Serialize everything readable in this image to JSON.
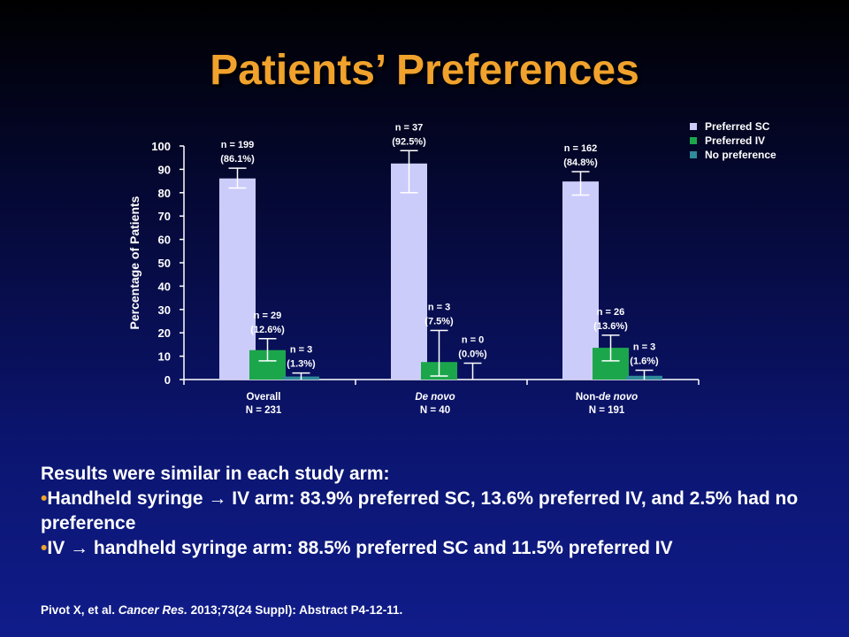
{
  "slide": {
    "title": "Patients’ Preferences",
    "summary_heading": "Results were similar in each study arm:",
    "bullet_marker": "•",
    "bullets": [
      "Handheld syringe → IV arm: 83.9% preferred SC, 13.6% preferred IV, and 2.5% had no preference",
      "IV → handheld syringe arm: 88.5% preferred SC and 11.5% preferred IV"
    ],
    "citation": {
      "authors": "Pivot X, et al.",
      "journal": "Cancer Res.",
      "details": "2013;73(24 Suppl): Abstract P4-12-11."
    }
  },
  "colors": {
    "title": "#f0a22c",
    "preferred_sc": "#ccccfa",
    "preferred_iv": "#1ca64c",
    "no_preference": "#2f8a9a"
  },
  "chart_data": {
    "type": "bar",
    "ylabel": "Percentage  of Patients",
    "ylim": [
      0,
      100
    ],
    "yticks": [
      0,
      10,
      20,
      30,
      40,
      50,
      60,
      70,
      80,
      90,
      100
    ],
    "legend_position": "top-right",
    "categories": [
      {
        "name": "Overall",
        "name_italic": "",
        "n": "N = 231"
      },
      {
        "name": "",
        "name_italic": "De novo",
        "n": "N = 40"
      },
      {
        "name": "Non-",
        "name_italic": "de novo",
        "n": "N = 191"
      }
    ],
    "series": [
      {
        "name": "Preferred SC",
        "color": "#ccccfa",
        "values": [
          86.1,
          92.5,
          84.8
        ],
        "error_low": [
          82,
          80,
          79
        ],
        "error_high": [
          90.5,
          98,
          89
        ],
        "n_labels": [
          "n = 199",
          "n = 37",
          "n = 162"
        ],
        "pct_labels": [
          "(86.1%)",
          "(92.5%)",
          "(84.8%)"
        ]
      },
      {
        "name": "Preferred IV",
        "color": "#1ca64c",
        "values": [
          12.6,
          7.5,
          13.6
        ],
        "error_low": [
          8,
          1.5,
          8
        ],
        "error_high": [
          17.5,
          21,
          19
        ],
        "n_labels": [
          "n = 29",
          "n = 3",
          "n = 26"
        ],
        "pct_labels": [
          "(12.6%)",
          "(7.5%)",
          "(13.6%)"
        ]
      },
      {
        "name": "No preference",
        "color": "#2f8a9a",
        "values": [
          1.3,
          0.0,
          1.6
        ],
        "error_low": [
          0,
          0,
          0
        ],
        "error_high": [
          2.8,
          7,
          4
        ],
        "n_labels": [
          "n = 3",
          "n = 0",
          "n = 3"
        ],
        "pct_labels": [
          "(1.3%)",
          "(0.0%)",
          "(1.6%)"
        ]
      }
    ]
  }
}
